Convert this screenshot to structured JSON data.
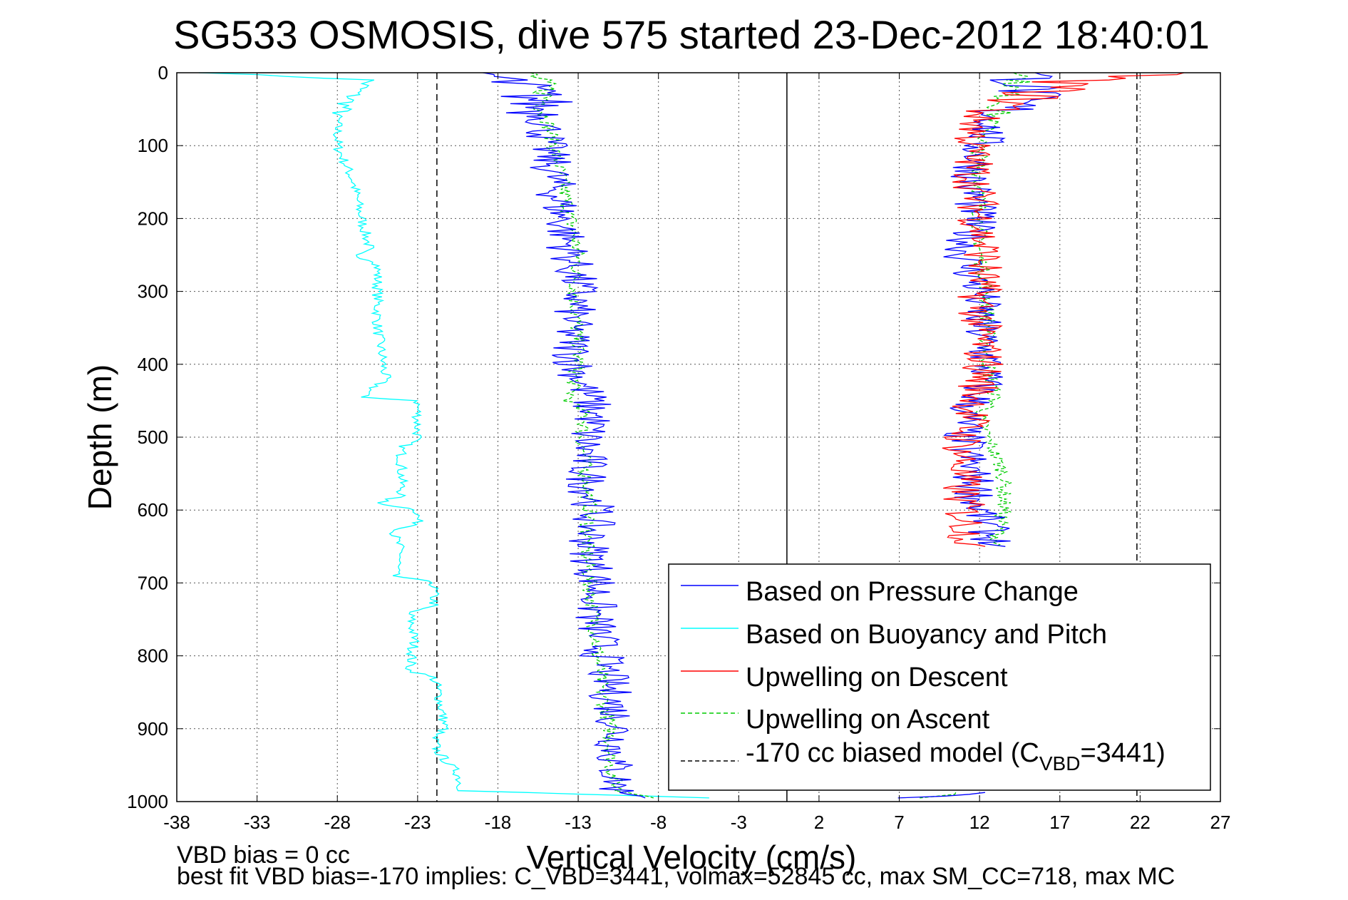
{
  "chart_data": {
    "type": "line",
    "title": "SG533 OSMOSIS, dive 575 started 23-Dec-2012 18:40:01",
    "xlabel": "Vertical Velocity (cm/s)",
    "ylabel": "Depth (m)",
    "xlim": [
      -38,
      27
    ],
    "ylim": [
      1000,
      0
    ],
    "y_reversed": true,
    "grid": true,
    "legend_position": "lower-right",
    "x_ticks": [
      -38,
      -33,
      -28,
      -23,
      -18,
      -13,
      -8,
      -3,
      2,
      7,
      12,
      17,
      22,
      27
    ],
    "y_ticks": [
      0,
      100,
      200,
      300,
      400,
      500,
      600,
      700,
      800,
      900,
      1000
    ],
    "reference_lines": [
      {
        "x": 0,
        "style": "solid",
        "color": "#000000"
      },
      {
        "x": -21.8,
        "style": "dashed",
        "color": "#000000"
      },
      {
        "x": 21.8,
        "style": "dashed",
        "color": "#000000"
      }
    ],
    "series": [
      {
        "name": "Based on Pressure Change",
        "color": "#0000ff",
        "dash": "solid",
        "depth": [
          0,
          25,
          60,
          100,
          150,
          200,
          250,
          300,
          350,
          400,
          440,
          470,
          500,
          550,
          600,
          650,
          700,
          750,
          800,
          850,
          900,
          950,
          985,
          995
        ],
        "descent": [
          -19,
          -16,
          -15,
          -15,
          -14.5,
          -14,
          -13.5,
          -13,
          -13.5,
          -13.2,
          -12.5,
          -12,
          -12.5,
          -12.5,
          -12,
          -12.3,
          -11.8,
          -12,
          -11.5,
          -11,
          -10.5,
          -10.8,
          -10.5,
          -8
        ],
        "ascent": [
          15,
          15,
          13,
          12,
          11.5,
          11.8,
          11,
          12,
          12,
          12.5,
          12,
          11,
          11,
          11.5,
          12,
          13,
          null,
          null,
          null,
          null,
          null,
          null,
          12,
          8
        ],
        "noise": 1.4
      },
      {
        "name": "Based on Buoyancy and Pitch",
        "color": "#00ffff",
        "dash": "solid",
        "depth": [
          0,
          10,
          30,
          60,
          100,
          150,
          200,
          240,
          250,
          260,
          290,
          350,
          420,
          445,
          450,
          500,
          515,
          540,
          580,
          590,
          600,
          620,
          630,
          660,
          690,
          700,
          730,
          740,
          780,
          820,
          830,
          850,
          900,
          910,
          930,
          950,
          960,
          985,
          995
        ],
        "values": [
          -36,
          -26,
          -27,
          -28,
          -28,
          -27,
          -26.5,
          -26,
          -27,
          -25.5,
          -25.5,
          -25.5,
          -25,
          -26.5,
          -23,
          -23,
          -24,
          -24,
          -24,
          -25.5,
          -23,
          -23,
          -24.5,
          -24,
          -24.5,
          -22,
          -22,
          -23.5,
          -23.2,
          -23.5,
          -22,
          -21.7,
          -21.3,
          -22,
          -21.8,
          -21,
          -20.5,
          -20.2,
          -5
        ],
        "noise": 0.35
      },
      {
        "name": "Upwelling on Descent",
        "color": "#ff0000",
        "dash": "solid",
        "depth": [
          0,
          10,
          25,
          60,
          100,
          150,
          200,
          250,
          300,
          350,
          400,
          450,
          500,
          550,
          600,
          650
        ],
        "values": [
          24,
          18,
          16,
          12,
          11.5,
          11.7,
          12,
          12.3,
          12,
          12,
          12.3,
          11.8,
          11,
          10.8,
          11,
          11.5
        ],
        "noise": 1.4
      },
      {
        "name": "Upwelling on Ascent",
        "color": "#00cc00",
        "dash": "dashed",
        "depth": [
          0,
          20,
          60,
          100,
          150,
          200,
          250,
          300,
          400,
          450,
          470,
          500,
          550,
          600,
          650,
          700,
          750,
          800,
          850,
          900,
          950,
          985,
          995
        ],
        "descent": [
          -16,
          -15,
          -15,
          -14.5,
          -14,
          -13.5,
          -13,
          -13.2,
          -13,
          -13.5,
          -12.5,
          -12.8,
          -12.5,
          -12.3,
          -12.5,
          -12.3,
          -12,
          -11.8,
          -11.5,
          -11,
          -11,
          -10.5,
          -8
        ],
        "ascent": [
          15,
          14,
          13,
          12,
          12,
          12,
          12,
          12.5,
          12.5,
          13,
          12,
          12.5,
          13.5,
          13.5,
          13,
          null,
          null,
          null,
          null,
          null,
          null,
          12,
          8
        ],
        "noise": 0.5
      },
      {
        "name": "-170 cc biased model (C",
        "name_sub": "VBD",
        "name_suffix": "=3441)",
        "color": "#000000",
        "dash": "dashed"
      }
    ]
  },
  "footer": {
    "line1": "VBD bias = 0 cc",
    "line2": "best fit VBD bias=-170 implies: C_VBD=3441, volmax=52845 cc, max SM_CC=718, max MC"
  }
}
